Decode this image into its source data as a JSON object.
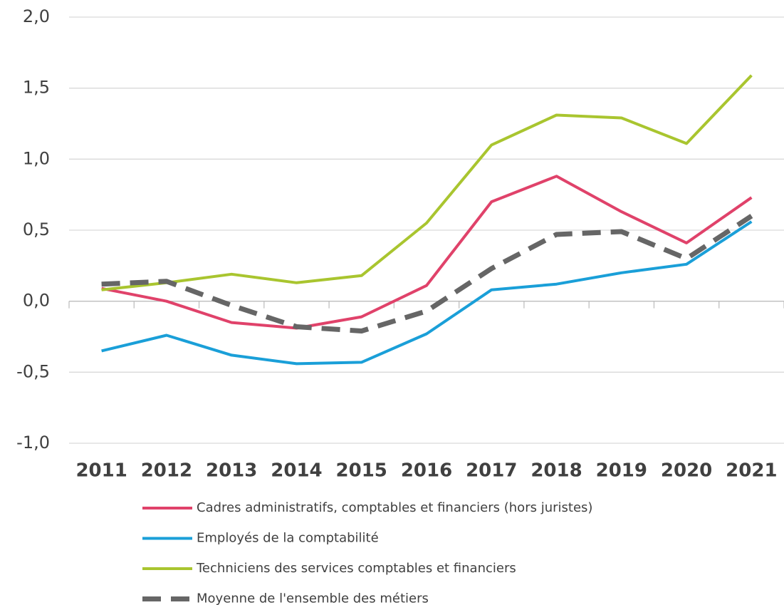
{
  "chart_data": {
    "type": "line",
    "categories": [
      "2011",
      "2012",
      "2013",
      "2014",
      "2015",
      "2016",
      "2017",
      "2018",
      "2019",
      "2020",
      "2021"
    ],
    "series": [
      {
        "name": "Cadres administratifs, comptables et financiers (hors juristes)",
        "color": "#e0426a",
        "dashed": false,
        "values": [
          0.09,
          0.0,
          -0.15,
          -0.19,
          -0.11,
          0.11,
          0.7,
          0.88,
          0.63,
          0.41,
          0.73
        ]
      },
      {
        "name": "Employés de la comptabilité",
        "color": "#1a9fd8",
        "dashed": false,
        "values": [
          -0.35,
          -0.24,
          -0.38,
          -0.44,
          -0.43,
          -0.23,
          0.08,
          0.12,
          0.2,
          0.26,
          0.56
        ]
      },
      {
        "name": "Techniciens des services comptables et financiers",
        "color": "#a9c52f",
        "dashed": false,
        "values": [
          0.08,
          0.13,
          0.19,
          0.13,
          0.18,
          0.55,
          1.1,
          1.31,
          1.29,
          1.11,
          1.59
        ]
      },
      {
        "name": "Moyenne de l'ensemble des métiers",
        "color": "#666666",
        "dashed": true,
        "values": [
          0.12,
          0.14,
          -0.03,
          -0.18,
          -0.21,
          -0.07,
          0.23,
          0.47,
          0.49,
          0.3,
          0.6
        ]
      }
    ],
    "ylim": [
      -1,
      2
    ],
    "yticks": [
      {
        "value": -1,
        "label": "-1,0"
      },
      {
        "value": -0.5,
        "label": "-0,5"
      },
      {
        "value": 0,
        "label": "0,0"
      },
      {
        "value": 0.5,
        "label": "0,5"
      },
      {
        "value": 1,
        "label": "1,0"
      },
      {
        "value": 1.5,
        "label": "1,5"
      },
      {
        "value": 2,
        "label": "2,0"
      }
    ],
    "grid": true,
    "legend": "bottom"
  }
}
